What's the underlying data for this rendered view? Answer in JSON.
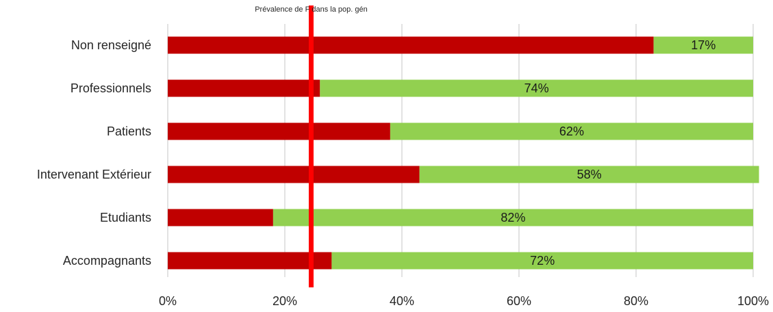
{
  "chart_data": {
    "type": "bar",
    "orientation": "horizontal",
    "stacked": true,
    "categories": [
      "Non renseigné",
      "Professionnels",
      "Patients",
      "Intervenant Extérieur",
      "Etudiants",
      "Accompagnants"
    ],
    "series": [
      {
        "values": [
          83,
          26,
          38,
          43,
          18,
          28
        ],
        "color": "#c00000"
      },
      {
        "values": [
          17,
          74,
          62,
          58,
          82,
          72
        ],
        "color": "#92d050"
      }
    ],
    "data_labels": [
      "17%",
      "74%",
      "62%",
      "58%",
      "82%",
      "72%"
    ],
    "xlim": [
      0,
      100
    ],
    "x_ticks": [
      0,
      20,
      40,
      60,
      80,
      100
    ],
    "x_tick_labels": [
      "0%",
      "20%",
      "40%",
      "60%",
      "80%",
      "100%"
    ],
    "grid": "vertical",
    "reference_line": {
      "value": 24.5,
      "label": "Prévalence de F dans la pop. gén",
      "color": "#ff0000"
    },
    "gridline_color": "#d9d9d9"
  }
}
